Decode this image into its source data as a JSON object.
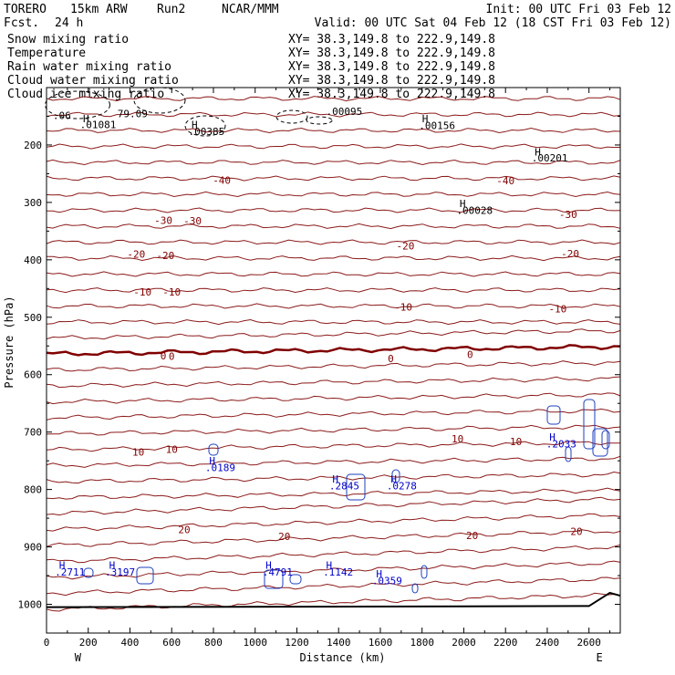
{
  "header": {
    "model": "TORERO",
    "resolution": "15km ARW",
    "run": "Run2",
    "org": "NCAR/MMM",
    "init_label": "Init: 00 UTC Fri 03 Feb 12",
    "fcst_label": "Fcst.",
    "fcst_value": "24 h",
    "valid_label": "Valid: 00 UTC Sat 04 Feb 12 (18 CST Fri 03 Feb 12)"
  },
  "fields": [
    {
      "name": "Snow mixing ratio",
      "color": "#000000",
      "xy": "XY=  38.3,149.8 to 222.9,149.8"
    },
    {
      "name": "Temperature",
      "color": "#800000",
      "xy": "XY=  38.3,149.8 to 222.9,149.8"
    },
    {
      "name": "Rain water mixing ratio",
      "color": "#cc0000",
      "xy": "XY=  38.3,149.8 to 222.9,149.8"
    },
    {
      "name": "Cloud water mixing ratio",
      "color": "#0000cc",
      "xy": "XY=  38.3,149.8 to 222.9,149.8"
    },
    {
      "name": "Cloud ice mixing ratio",
      "color": "#000000",
      "xy": "XY=  38.3,149.8 to 222.9,149.8"
    }
  ],
  "chart_data": {
    "type": "line",
    "title": "",
    "xlabel": "Distance (km)",
    "ylabel": "Pressure (hPa)",
    "xlim": [
      0,
      2750
    ],
    "ylim": [
      1050,
      100
    ],
    "x_ticks": [
      0,
      200,
      400,
      600,
      800,
      1000,
      1200,
      1400,
      1600,
      1800,
      2000,
      2200,
      2400,
      2600
    ],
    "y_ticks": [
      200,
      300,
      400,
      500,
      600,
      700,
      800,
      900,
      1000
    ],
    "x_left_label": "W",
    "x_right_label": "E",
    "temperature_contours": [
      {
        "label": "-40",
        "label_points": [
          [
            840,
            261
          ],
          [
            2200,
            262
          ]
        ]
      },
      {
        "label": "-30",
        "label_points": [
          [
            560,
            331
          ],
          [
            700,
            332
          ],
          [
            2500,
            321
          ]
        ]
      },
      {
        "label": "-20",
        "label_points": [
          [
            430,
            390
          ],
          [
            570,
            392
          ],
          [
            1720,
            376
          ],
          [
            2510,
            389
          ]
        ]
      },
      {
        "label": "-10",
        "label_points": [
          [
            460,
            456
          ],
          [
            600,
            456
          ],
          [
            1710,
            482
          ],
          [
            2450,
            485
          ]
        ]
      },
      {
        "label": "0",
        "label_points": [
          [
            560,
            567
          ],
          [
            600,
            568
          ],
          [
            1650,
            572
          ],
          [
            2030,
            565
          ]
        ]
      },
      {
        "label": "10",
        "label_points": [
          [
            440,
            735
          ],
          [
            600,
            730
          ],
          [
            1970,
            712
          ],
          [
            2250,
            716
          ]
        ]
      },
      {
        "label": "20",
        "label_points": [
          [
            660,
            870
          ],
          [
            1140,
            882
          ],
          [
            2040,
            880
          ],
          [
            2540,
            873
          ]
        ]
      }
    ],
    "maxima_labels": [
      {
        "text": ".06",
        "x": 30,
        "y": 155,
        "color": "#000000"
      },
      {
        "text": "H",
        "x": 175,
        "y": 160,
        "color": "#000000"
      },
      {
        "text": ".01081",
        "x": 160,
        "y": 171,
        "color": "#000000"
      },
      {
        "text": "79.09",
        "x": 340,
        "y": 152,
        "color": "#000000"
      },
      {
        "text": "H",
        "x": 695,
        "y": 171,
        "color": "#000000"
      },
      {
        "text": ".00385",
        "x": 680,
        "y": 183,
        "color": "#000000"
      },
      {
        "text": ".00095",
        "x": 1340,
        "y": 148,
        "color": "#000000"
      },
      {
        "text": "H",
        "x": 1800,
        "y": 160,
        "color": "#000000"
      },
      {
        "text": ".00156",
        "x": 1785,
        "y": 172,
        "color": "#000000"
      },
      {
        "text": "H",
        "x": 2340,
        "y": 218,
        "color": "#000000"
      },
      {
        "text": ".00201",
        "x": 2325,
        "y": 229,
        "color": "#000000"
      },
      {
        "text": "H",
        "x": 1980,
        "y": 308,
        "color": "#000000"
      },
      {
        "text": ".00028",
        "x": 1965,
        "y": 320,
        "color": "#000000"
      },
      {
        "text": "H",
        "x": 2410,
        "y": 715,
        "color": "#0000cc"
      },
      {
        "text": ".2033",
        "x": 2395,
        "y": 727,
        "color": "#0000cc"
      },
      {
        "text": "H",
        "x": 780,
        "y": 756,
        "color": "#0000cc"
      },
      {
        "text": ".0189",
        "x": 760,
        "y": 768,
        "color": "#0000cc"
      },
      {
        "text": "H",
        "x": 1370,
        "y": 788,
        "color": "#0000cc"
      },
      {
        "text": ".2845",
        "x": 1355,
        "y": 800,
        "color": "#0000cc"
      },
      {
        "text": "H",
        "x": 1650,
        "y": 788,
        "color": "#0000cc"
      },
      {
        "text": ".0278",
        "x": 1630,
        "y": 800,
        "color": "#0000cc"
      },
      {
        "text": "H",
        "x": 60,
        "y": 938,
        "color": "#0000cc"
      },
      {
        "text": ".2711",
        "x": 40,
        "y": 950,
        "color": "#0000cc"
      },
      {
        "text": "H",
        "x": 300,
        "y": 938,
        "color": "#0000cc"
      },
      {
        "text": ".3197",
        "x": 280,
        "y": 950,
        "color": "#0000cc"
      },
      {
        "text": "H",
        "x": 1050,
        "y": 938,
        "color": "#0000cc"
      },
      {
        "text": ".4791",
        "x": 1035,
        "y": 950,
        "color": "#0000cc"
      },
      {
        "text": "H",
        "x": 1340,
        "y": 938,
        "color": "#0000cc"
      },
      {
        "text": ".1142",
        "x": 1325,
        "y": 950,
        "color": "#0000cc"
      },
      {
        "text": "H",
        "x": 1580,
        "y": 953,
        "color": "#0000cc"
      },
      {
        "text": ".0359",
        "x": 1560,
        "y": 965,
        "color": "#0000cc"
      }
    ],
    "grid": false
  }
}
